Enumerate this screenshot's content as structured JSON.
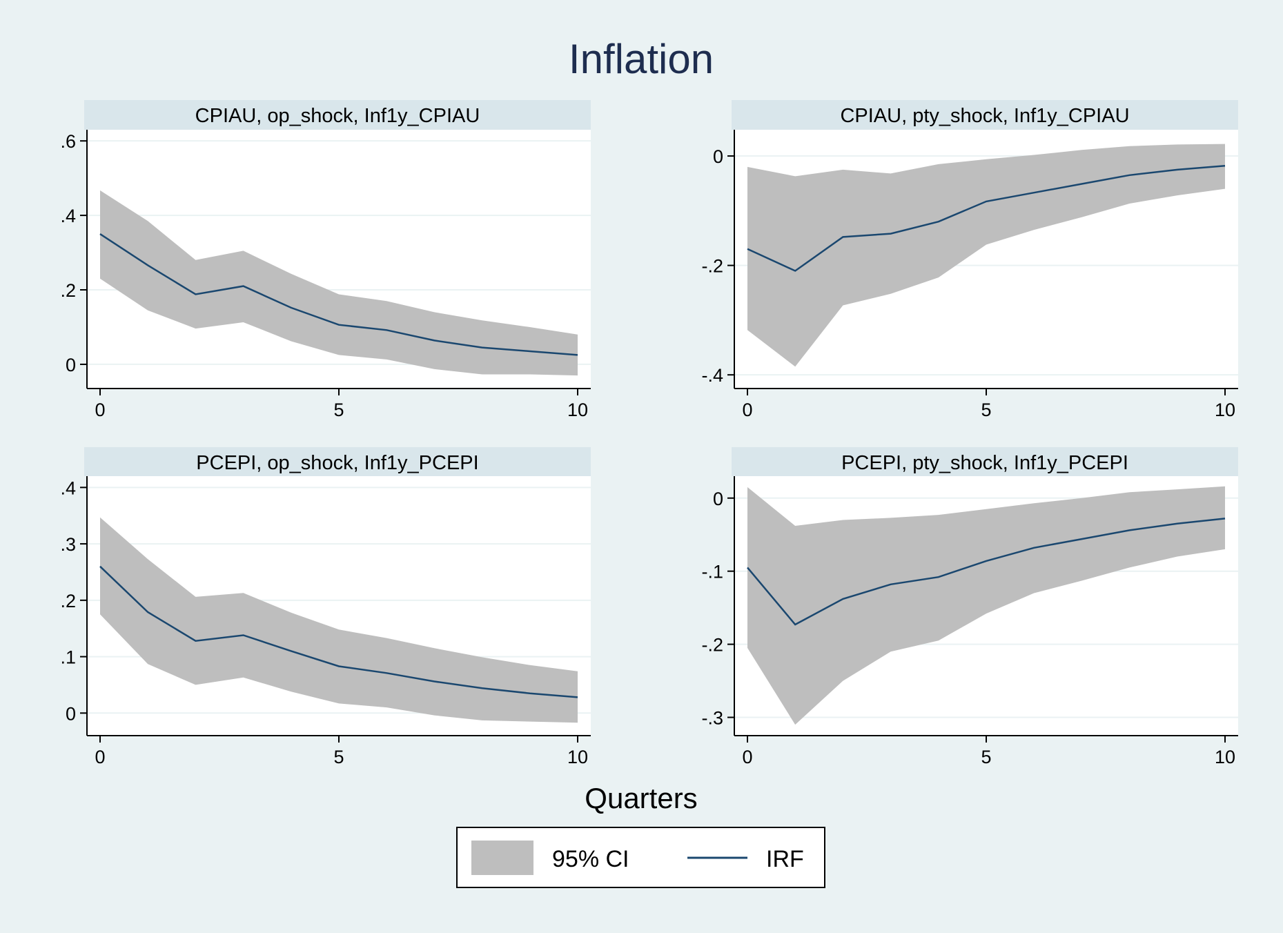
{
  "figure": {
    "title": "Inflation",
    "xlabel": "Quarters",
    "legend": {
      "ci_label": "95% CI",
      "irf_label": "IRF",
      "placement": "bottom-center"
    }
  },
  "colors": {
    "background": "#eaf2f3",
    "plot_background": "#ffffff",
    "subtitle_band": "#d9e6eb",
    "ci_fill": "#bebebe",
    "irf_line": "#1a476f",
    "title": "#1e2d4f",
    "gridline": "#eaf2f3"
  },
  "chart_data": [
    {
      "type": "area",
      "title": "CPIAU, op_shock, Inf1y_CPIAU",
      "x": [
        0,
        1,
        2,
        3,
        4,
        5,
        6,
        7,
        8,
        9,
        10
      ],
      "xticks": [
        "0",
        "5",
        "10"
      ],
      "xlim": [
        0,
        10
      ],
      "ylim": [
        -0.065,
        0.63
      ],
      "yticks": [
        0,
        0.2,
        0.4,
        0.6
      ],
      "ytick_labels": [
        "0",
        ".2",
        ".4",
        ".6"
      ],
      "grid": true,
      "series": [
        {
          "name": "95% CI",
          "kind": "band",
          "lower": [
            0.23,
            0.145,
            0.096,
            0.113,
            0.062,
            0.025,
            0.013,
            -0.013,
            -0.027,
            -0.027,
            -0.03
          ],
          "upper": [
            0.467,
            0.385,
            0.28,
            0.305,
            0.243,
            0.188,
            0.17,
            0.14,
            0.118,
            0.1,
            0.08
          ]
        },
        {
          "name": "IRF",
          "kind": "line",
          "values": [
            0.35,
            0.266,
            0.188,
            0.21,
            0.152,
            0.106,
            0.092,
            0.064,
            0.045,
            0.035,
            0.025
          ]
        }
      ]
    },
    {
      "type": "area",
      "title": "CPIAU, pty_shock, Inf1y_CPIAU",
      "x": [
        0,
        1,
        2,
        3,
        4,
        5,
        6,
        7,
        8,
        9,
        10
      ],
      "xticks": [
        "0",
        "5",
        "10"
      ],
      "xlim": [
        0,
        10
      ],
      "ylim": [
        -0.425,
        0.048
      ],
      "yticks": [
        -0.4,
        -0.2,
        0
      ],
      "ytick_labels": [
        "-.4",
        "-.2",
        "0"
      ],
      "grid": true,
      "series": [
        {
          "name": "95% CI",
          "kind": "band",
          "lower": [
            -0.318,
            -0.385,
            -0.273,
            -0.252,
            -0.222,
            -0.162,
            -0.135,
            -0.112,
            -0.087,
            -0.072,
            -0.06
          ],
          "upper": [
            -0.02,
            -0.037,
            -0.025,
            -0.032,
            -0.015,
            -0.006,
            0.002,
            0.011,
            0.018,
            0.021,
            0.022
          ]
        },
        {
          "name": "IRF",
          "kind": "line",
          "values": [
            -0.17,
            -0.21,
            -0.148,
            -0.142,
            -0.12,
            -0.083,
            -0.067,
            -0.051,
            -0.035,
            -0.025,
            -0.018
          ]
        }
      ]
    },
    {
      "type": "area",
      "title": "PCEPI, op_shock, Inf1y_PCEPI",
      "x": [
        0,
        1,
        2,
        3,
        4,
        5,
        6,
        7,
        8,
        9,
        10
      ],
      "xticks": [
        "0",
        "5",
        "10"
      ],
      "xlim": [
        0,
        10
      ],
      "ylim": [
        -0.04,
        0.42
      ],
      "yticks": [
        0,
        0.1,
        0.2,
        0.3,
        0.4
      ],
      "ytick_labels": [
        "0",
        ".1",
        ".2",
        ".3",
        ".4"
      ],
      "grid": true,
      "series": [
        {
          "name": "95% CI",
          "kind": "band",
          "lower": [
            0.175,
            0.087,
            0.05,
            0.063,
            0.038,
            0.017,
            0.01,
            -0.004,
            -0.013,
            -0.015,
            -0.017
          ],
          "upper": [
            0.347,
            0.273,
            0.206,
            0.213,
            0.178,
            0.148,
            0.133,
            0.115,
            0.099,
            0.085,
            0.074
          ]
        },
        {
          "name": "IRF",
          "kind": "line",
          "values": [
            0.26,
            0.179,
            0.128,
            0.138,
            0.11,
            0.083,
            0.071,
            0.056,
            0.044,
            0.035,
            0.028
          ]
        }
      ]
    },
    {
      "type": "area",
      "title": "PCEPI, pty_shock, Inf1y_PCEPI",
      "x": [
        0,
        1,
        2,
        3,
        4,
        5,
        6,
        7,
        8,
        9,
        10
      ],
      "xticks": [
        "0",
        "5",
        "10"
      ],
      "xlim": [
        0,
        10
      ],
      "ylim": [
        -0.325,
        0.03
      ],
      "yticks": [
        -0.3,
        -0.2,
        -0.1,
        0
      ],
      "ytick_labels": [
        "-.3",
        "-.2",
        "-.1",
        "0"
      ],
      "grid": true,
      "series": [
        {
          "name": "95% CI",
          "kind": "band",
          "lower": [
            -0.205,
            -0.31,
            -0.25,
            -0.21,
            -0.195,
            -0.158,
            -0.13,
            -0.113,
            -0.095,
            -0.08,
            -0.07
          ],
          "upper": [
            0.015,
            -0.038,
            -0.03,
            -0.027,
            -0.023,
            -0.015,
            -0.007,
            0.0,
            0.008,
            0.012,
            0.016
          ]
        },
        {
          "name": "IRF",
          "kind": "line",
          "values": [
            -0.095,
            -0.173,
            -0.138,
            -0.118,
            -0.108,
            -0.086,
            -0.068,
            -0.056,
            -0.044,
            -0.035,
            -0.028
          ]
        }
      ]
    }
  ]
}
